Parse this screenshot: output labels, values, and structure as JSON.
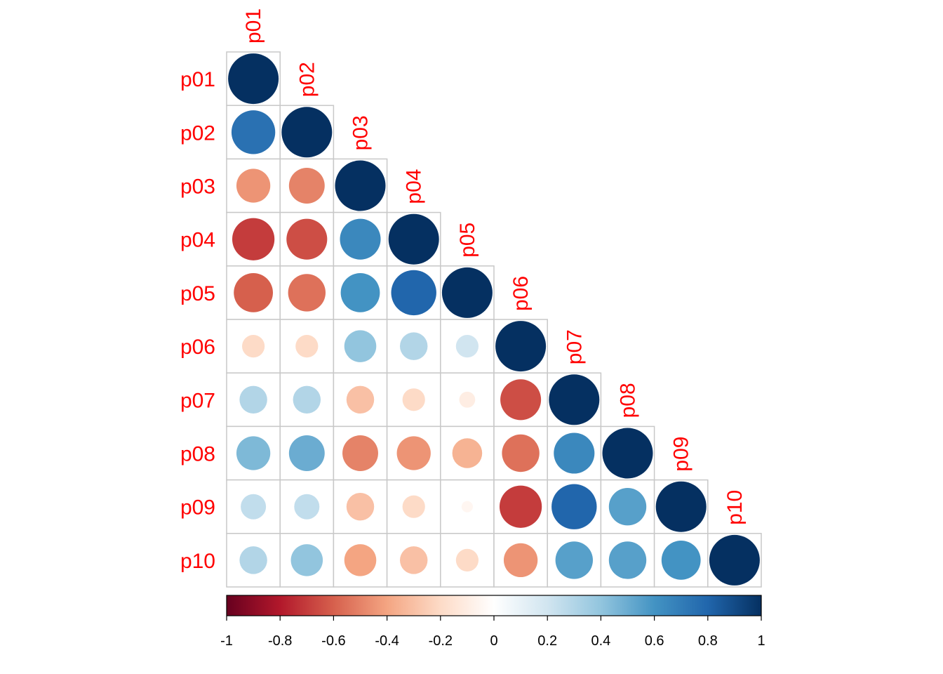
{
  "chart_data": {
    "type": "heatmap",
    "subtype": "correlation-plot-lower-circles",
    "variables": [
      "p01",
      "p02",
      "p03",
      "p04",
      "p05",
      "p06",
      "p07",
      "p08",
      "p09",
      "p10"
    ],
    "matrix": [
      [
        1.0
      ],
      [
        0.75,
        1.0
      ],
      [
        -0.45,
        -0.5,
        1.0
      ],
      [
        -0.7,
        -0.65,
        0.65,
        1.0
      ],
      [
        -0.6,
        -0.55,
        0.6,
        0.8,
        1.0
      ],
      [
        -0.2,
        -0.2,
        0.4,
        0.3,
        0.2,
        1.0
      ],
      [
        0.3,
        0.3,
        -0.3,
        -0.2,
        -0.1,
        -0.65,
        1.0
      ],
      [
        0.45,
        0.5,
        -0.5,
        -0.45,
        -0.35,
        -0.55,
        0.65,
        1.0
      ],
      [
        0.25,
        0.25,
        -0.3,
        -0.2,
        -0.05,
        -0.7,
        0.8,
        0.55,
        1.0
      ],
      [
        0.3,
        0.4,
        -0.4,
        -0.3,
        -0.2,
        -0.45,
        0.55,
        0.55,
        0.6,
        1.0
      ]
    ],
    "colorbar": {
      "range": [
        -1,
        1
      ],
      "ticks": [
        "-1",
        "-0.8",
        "-0.6",
        "-0.4",
        "-0.2",
        "0",
        "0.2",
        "0.4",
        "0.6",
        "0.8",
        "1"
      ],
      "placement": "bottom"
    },
    "colors": {
      "palette": [
        "#67001F",
        "#B2182B",
        "#D6604D",
        "#F4A582",
        "#FDDBC7",
        "#FFFFFF",
        "#D1E5F0",
        "#92C5DE",
        "#4393C3",
        "#2166AC",
        "#053061"
      ],
      "label_color": "#FF0000",
      "grid_color": "#C8C8C8"
    },
    "grid": true
  }
}
